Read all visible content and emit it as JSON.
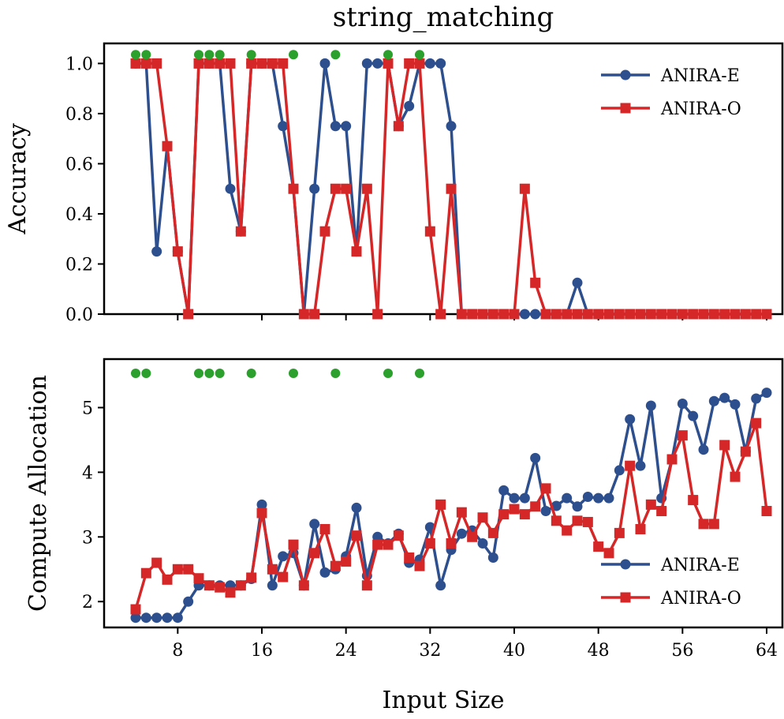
{
  "title": "string_matching",
  "xlabel": "Input Size",
  "colors": {
    "anira_e": "#2d4f8e",
    "anira_o": "#d62728",
    "marker": "#2ca02c"
  },
  "legend": [
    "ANIRA-E",
    "ANIRA-O"
  ],
  "chart_data": [
    {
      "type": "line",
      "ylabel": "Accuracy",
      "xlim": [
        1,
        65.5
      ],
      "ylim": [
        0,
        1.08
      ],
      "xticks": [
        8,
        16,
        24,
        32,
        40,
        48,
        56,
        64
      ],
      "yticks": [
        "0.0",
        "0.2",
        "0.4",
        "0.6",
        "0.8",
        "1.0"
      ],
      "legend_position": "top-right",
      "green_marker_y": 1.035,
      "green_markers_x": [
        4,
        5,
        10,
        11,
        12,
        15,
        19,
        23,
        28,
        31
      ],
      "series": [
        {
          "name": "ANIRA-E",
          "x": [
            4,
            5,
            6,
            7,
            8,
            9,
            10,
            11,
            12,
            13,
            14,
            15,
            16,
            17,
            18,
            19,
            20,
            21,
            22,
            23,
            24,
            25,
            26,
            27,
            28,
            29,
            30,
            31,
            32,
            33,
            34,
            35,
            36,
            37,
            38,
            39,
            40,
            41,
            42,
            43,
            44,
            45,
            46,
            47,
            48,
            49,
            50,
            51,
            52,
            53,
            54,
            55,
            56,
            57,
            58,
            59,
            60,
            61,
            62,
            63,
            64
          ],
          "values": [
            1,
            1,
            0.25,
            0.67,
            0.25,
            0,
            1,
            1,
            1,
            0.5,
            0.33,
            1,
            1,
            1,
            0.75,
            0.5,
            0,
            0.5,
            1,
            0.75,
            0.75,
            0.25,
            1,
            1,
            1,
            0.75,
            0.83,
            1,
            1,
            1,
            0.75,
            0,
            0,
            0,
            0,
            0,
            0,
            0,
            0,
            0,
            0,
            0,
            0.125,
            0,
            0,
            0,
            0,
            0,
            0,
            0,
            0,
            0,
            0,
            0,
            0,
            0,
            0,
            0,
            0,
            0,
            0
          ]
        },
        {
          "name": "ANIRA-O",
          "x": [
            4,
            5,
            6,
            7,
            8,
            9,
            10,
            11,
            12,
            13,
            14,
            15,
            16,
            17,
            18,
            19,
            20,
            21,
            22,
            23,
            24,
            25,
            26,
            27,
            28,
            29,
            30,
            31,
            32,
            33,
            34,
            35,
            36,
            37,
            38,
            39,
            40,
            41,
            42,
            43,
            44,
            45,
            46,
            47,
            48,
            49,
            50,
            51,
            52,
            53,
            54,
            55,
            56,
            57,
            58,
            59,
            60,
            61,
            62,
            63,
            64
          ],
          "values": [
            1,
            1,
            1,
            0.67,
            0.25,
            0,
            1,
            1,
            1,
            1,
            0.33,
            1,
            1,
            1,
            1,
            0.5,
            0,
            0,
            0.33,
            0.5,
            0.5,
            0.25,
            0.5,
            0,
            1,
            0.75,
            1,
            1,
            0.33,
            0,
            0.5,
            0,
            0,
            0,
            0,
            0,
            0,
            0.5,
            0.125,
            0,
            0,
            0,
            0,
            0,
            0,
            0,
            0,
            0,
            0,
            0,
            0,
            0,
            0,
            0,
            0,
            0,
            0,
            0,
            0,
            0,
            0
          ]
        }
      ]
    },
    {
      "type": "line",
      "ylabel": "Compute Allocation",
      "xlim": [
        1,
        65.5
      ],
      "ylim": [
        1.6,
        5.75
      ],
      "xticks": [
        8,
        16,
        24,
        32,
        40,
        48,
        56,
        64
      ],
      "yticks": [
        "2",
        "3",
        "4",
        "5"
      ],
      "legend_position": "bottom-right",
      "green_marker_y": 5.53,
      "green_markers_x": [
        4,
        5,
        10,
        11,
        12,
        15,
        19,
        23,
        28,
        31
      ],
      "series": [
        {
          "name": "ANIRA-E",
          "x": [
            4,
            5,
            6,
            7,
            8,
            9,
            10,
            11,
            12,
            13,
            14,
            15,
            16,
            17,
            18,
            19,
            20,
            21,
            22,
            23,
            24,
            25,
            26,
            27,
            28,
            29,
            30,
            31,
            32,
            33,
            34,
            35,
            36,
            37,
            38,
            39,
            40,
            41,
            42,
            43,
            44,
            45,
            46,
            47,
            48,
            49,
            50,
            51,
            52,
            53,
            54,
            55,
            56,
            57,
            58,
            59,
            60,
            61,
            62,
            63,
            64
          ],
          "values": [
            1.75,
            1.75,
            1.75,
            1.75,
            1.75,
            2.0,
            2.25,
            2.25,
            2.25,
            2.25,
            2.25,
            2.35,
            3.5,
            2.25,
            2.7,
            2.75,
            2.25,
            3.2,
            2.45,
            2.5,
            2.7,
            3.45,
            2.4,
            3.0,
            2.9,
            3.05,
            2.6,
            2.65,
            3.15,
            2.25,
            2.8,
            3.05,
            3.1,
            2.9,
            2.68,
            3.72,
            3.6,
            3.6,
            4.22,
            3.4,
            3.48,
            3.6,
            3.47,
            3.62,
            3.6,
            3.6,
            4.03,
            4.82,
            4.1,
            5.03,
            3.6,
            4.2,
            5.06,
            4.87,
            4.35,
            5.1,
            5.15,
            5.05,
            4.32,
            5.14,
            5.23
          ]
        },
        {
          "name": "ANIRA-O",
          "x": [
            4,
            5,
            6,
            7,
            8,
            9,
            10,
            11,
            12,
            13,
            14,
            15,
            16,
            17,
            18,
            19,
            20,
            21,
            22,
            23,
            24,
            25,
            26,
            27,
            28,
            29,
            30,
            31,
            32,
            33,
            34,
            35,
            36,
            37,
            38,
            39,
            40,
            41,
            42,
            43,
            44,
            45,
            46,
            47,
            48,
            49,
            50,
            51,
            52,
            53,
            54,
            55,
            56,
            57,
            58,
            59,
            60,
            61,
            62,
            63,
            64
          ],
          "values": [
            1.88,
            2.44,
            2.6,
            2.34,
            2.5,
            2.5,
            2.36,
            2.25,
            2.22,
            2.14,
            2.25,
            2.37,
            3.37,
            2.5,
            2.38,
            2.88,
            2.25,
            2.75,
            3.12,
            2.55,
            2.62,
            3.02,
            2.25,
            2.88,
            2.88,
            3.02,
            2.68,
            2.55,
            2.9,
            3.5,
            2.9,
            3.38,
            3.0,
            3.3,
            3.06,
            3.35,
            3.43,
            3.35,
            3.47,
            3.75,
            3.25,
            3.1,
            3.25,
            3.23,
            2.85,
            2.75,
            3.06,
            4.1,
            3.12,
            3.5,
            3.4,
            4.2,
            4.57,
            3.57,
            3.2,
            3.2,
            4.42,
            3.93,
            4.32,
            4.76,
            3.4
          ]
        }
      ]
    }
  ]
}
